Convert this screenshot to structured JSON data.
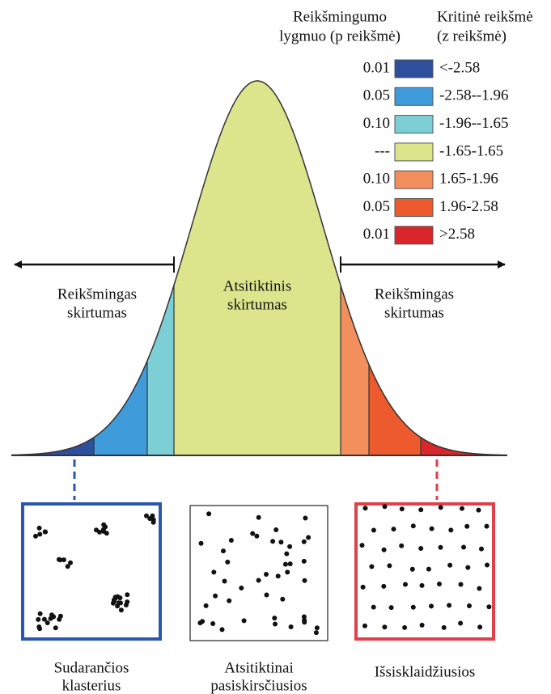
{
  "legend": {
    "p_header": [
      "Reikšmingumo",
      "lygmuo (p reikšmė)"
    ],
    "z_header": [
      "Kritinė reikšmė",
      "(z reikšmė)"
    ],
    "rows": [
      {
        "p": "0.01",
        "z": "<-2.58",
        "color": "#2d4f9c"
      },
      {
        "p": "0.05",
        "z": "-2.58--1.96",
        "color": "#3f9bd9"
      },
      {
        "p": "0.10",
        "z": "-1.96--1.65",
        "color": "#7dcfd6"
      },
      {
        "p": "---",
        "z": "-1.65-1.65",
        "color": "#dde58c"
      },
      {
        "p": "0.10",
        "z": "1.65-1.96",
        "color": "#f28f5c"
      },
      {
        "p": "0.05",
        "z": "1.96-2.58",
        "color": "#ec5a2d"
      },
      {
        "p": "0.01",
        "z": ">2.58",
        "color": "#d9262a"
      }
    ]
  },
  "labels": {
    "left": [
      "Reikšmingas",
      "skirtumas"
    ],
    "center": [
      "Atsitiktinis",
      "skirtumas"
    ],
    "right": [
      "Reikšmingas",
      "skirtumas"
    ]
  },
  "panels": [
    {
      "caption": [
        "Sudarančios",
        "klasterius"
      ],
      "border": "#2a57b0"
    },
    {
      "caption": [
        "Atsitiktinai",
        "pasiskirsčiusios"
      ],
      "border": "#222222"
    },
    {
      "caption": [
        "Išsisklaidžiusios"
      ],
      "border": "#e0404a"
    }
  ]
}
